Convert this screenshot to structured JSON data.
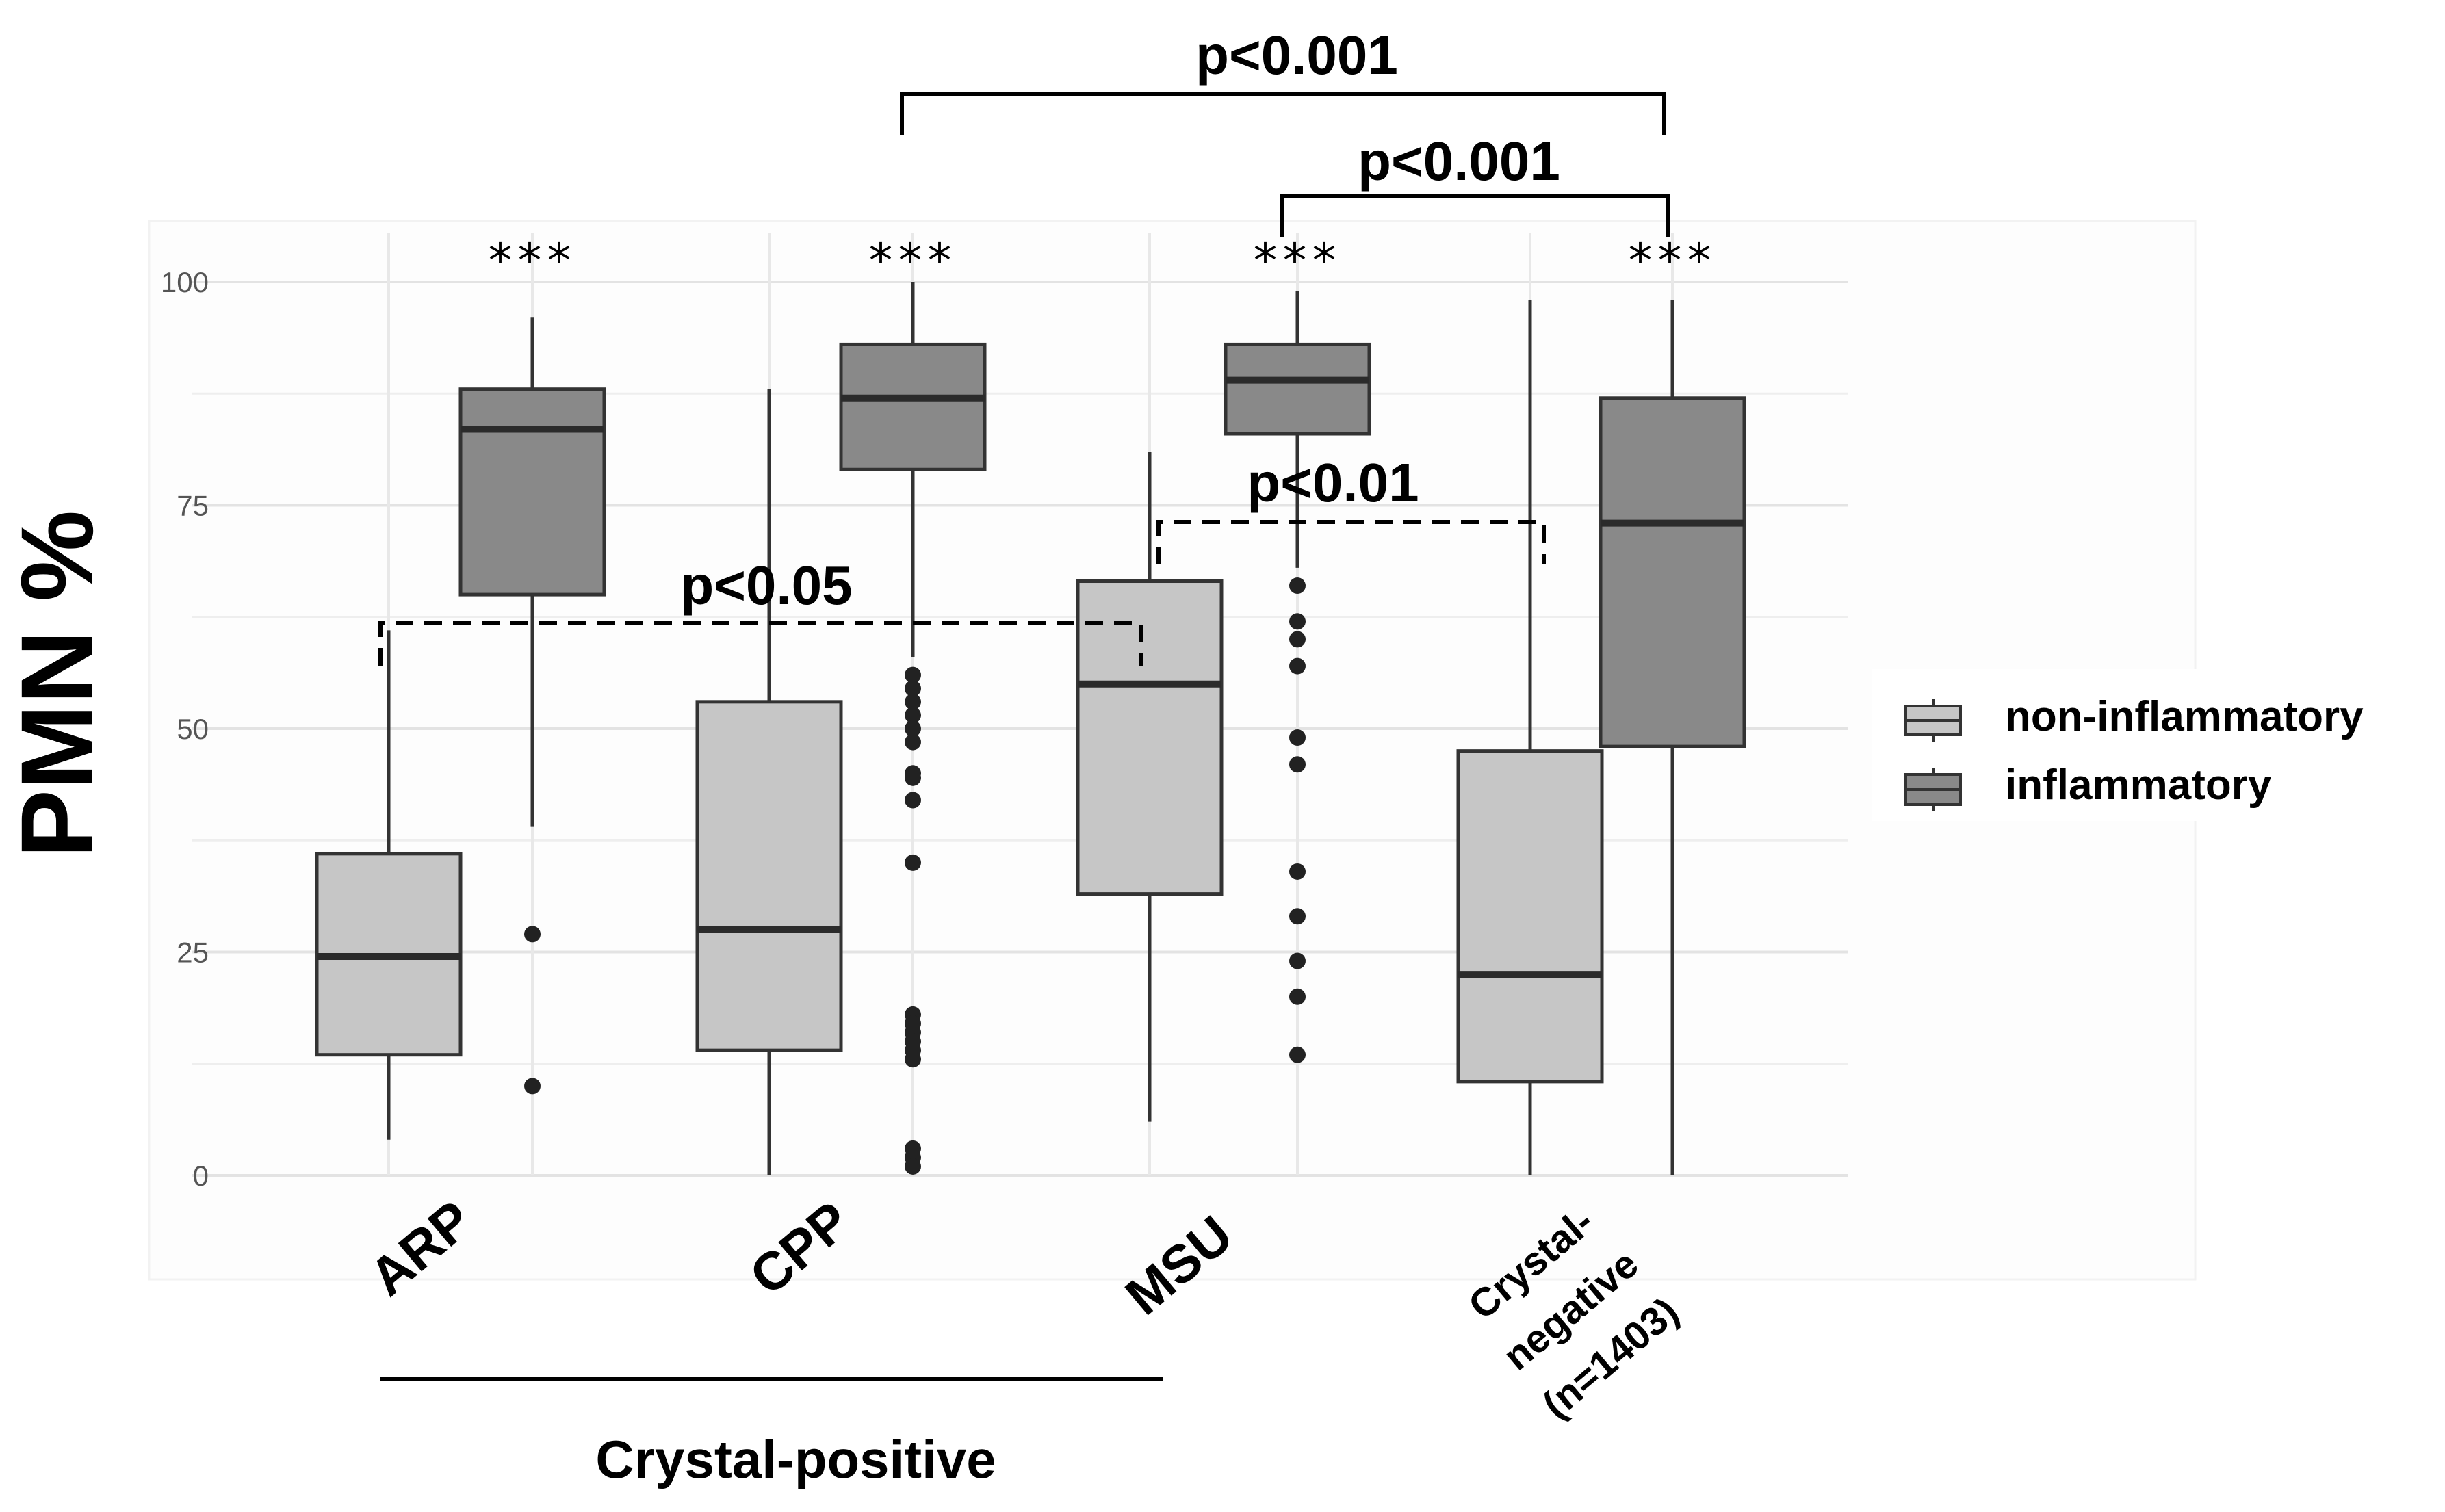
{
  "chart_data": {
    "type": "boxplot",
    "ylabel": "PMN %",
    "ylim": [
      0,
      100
    ],
    "yticks": [
      0,
      25,
      50,
      75,
      100
    ],
    "categories": [
      "ARP",
      "CPP",
      "MSU",
      "Crystal-negative (n=1403)"
    ],
    "category_label_lines": [
      [
        "ARP"
      ],
      [
        "CPP"
      ],
      [
        "MSU"
      ],
      [
        "Crystal-",
        "negative",
        "(n=1403)"
      ]
    ],
    "group_label": "Crystal-positive",
    "series": [
      {
        "name": "non-inflammatory",
        "color": "#c6c6c6",
        "boxes": [
          {
            "category": "ARP",
            "whisker_low": 4,
            "q1": 13.5,
            "median": 24.5,
            "q3": 36,
            "whisker_high": 61,
            "outliers": []
          },
          {
            "category": "CPP",
            "whisker_low": 0,
            "q1": 14,
            "median": 27.5,
            "q3": 53,
            "whisker_high": 88,
            "outliers": []
          },
          {
            "category": "MSU",
            "whisker_low": 6,
            "q1": 31.5,
            "median": 55,
            "q3": 66.5,
            "whisker_high": 81,
            "outliers": []
          },
          {
            "category": "Crystal-negative (n=1403)",
            "whisker_low": 0,
            "q1": 10.5,
            "median": 22.5,
            "q3": 47.5,
            "whisker_high": 98,
            "outliers": []
          }
        ]
      },
      {
        "name": "inflammatory",
        "color": "#898989",
        "boxes": [
          {
            "category": "ARP",
            "whisker_low": 39,
            "q1": 65,
            "median": 83.5,
            "q3": 88,
            "whisker_high": 96,
            "outliers": [
              27,
              10
            ]
          },
          {
            "category": "CPP",
            "whisker_low": 58,
            "q1": 79,
            "median": 87,
            "q3": 93,
            "whisker_high": 100,
            "outliers": [
              56,
              54.5,
              53,
              51.5,
              50,
              48.5,
              45,
              44.5,
              42,
              35,
              18,
              17,
              16,
              15,
              14,
              13,
              3,
              2,
              1
            ]
          },
          {
            "category": "MSU",
            "whisker_low": 68,
            "q1": 83,
            "median": 89,
            "q3": 93,
            "whisker_high": 99,
            "outliers": [
              66,
              62,
              60,
              57,
              49,
              46,
              34,
              29,
              24,
              20,
              13.5
            ]
          },
          {
            "category": "Crystal-negative (n=1403)",
            "whisker_low": 0,
            "q1": 48,
            "median": 73,
            "q3": 87,
            "whisker_high": 98,
            "outliers": []
          }
        ]
      }
    ],
    "significance_stars": [
      "***",
      "***",
      "***",
      "***"
    ],
    "comparisons": [
      {
        "label": "p<0.001",
        "between": [
          "CPP inflammatory",
          "Crystal-negative inflammatory"
        ],
        "style": "solid"
      },
      {
        "label": "p<0.001",
        "between": [
          "MSU inflammatory",
          "Crystal-negative inflammatory"
        ],
        "style": "solid"
      },
      {
        "label": "p<0.01",
        "between": [
          "MSU non-inflammatory",
          "Crystal-negative non-inflammatory"
        ],
        "style": "dashed"
      },
      {
        "label": "p<0.05",
        "between": [
          "ARP non-inflammatory",
          "MSU non-inflammatory"
        ],
        "style": "dashed"
      }
    ],
    "legend": {
      "position": "right",
      "items": [
        "non-inflammatory",
        "inflammatory"
      ]
    }
  }
}
